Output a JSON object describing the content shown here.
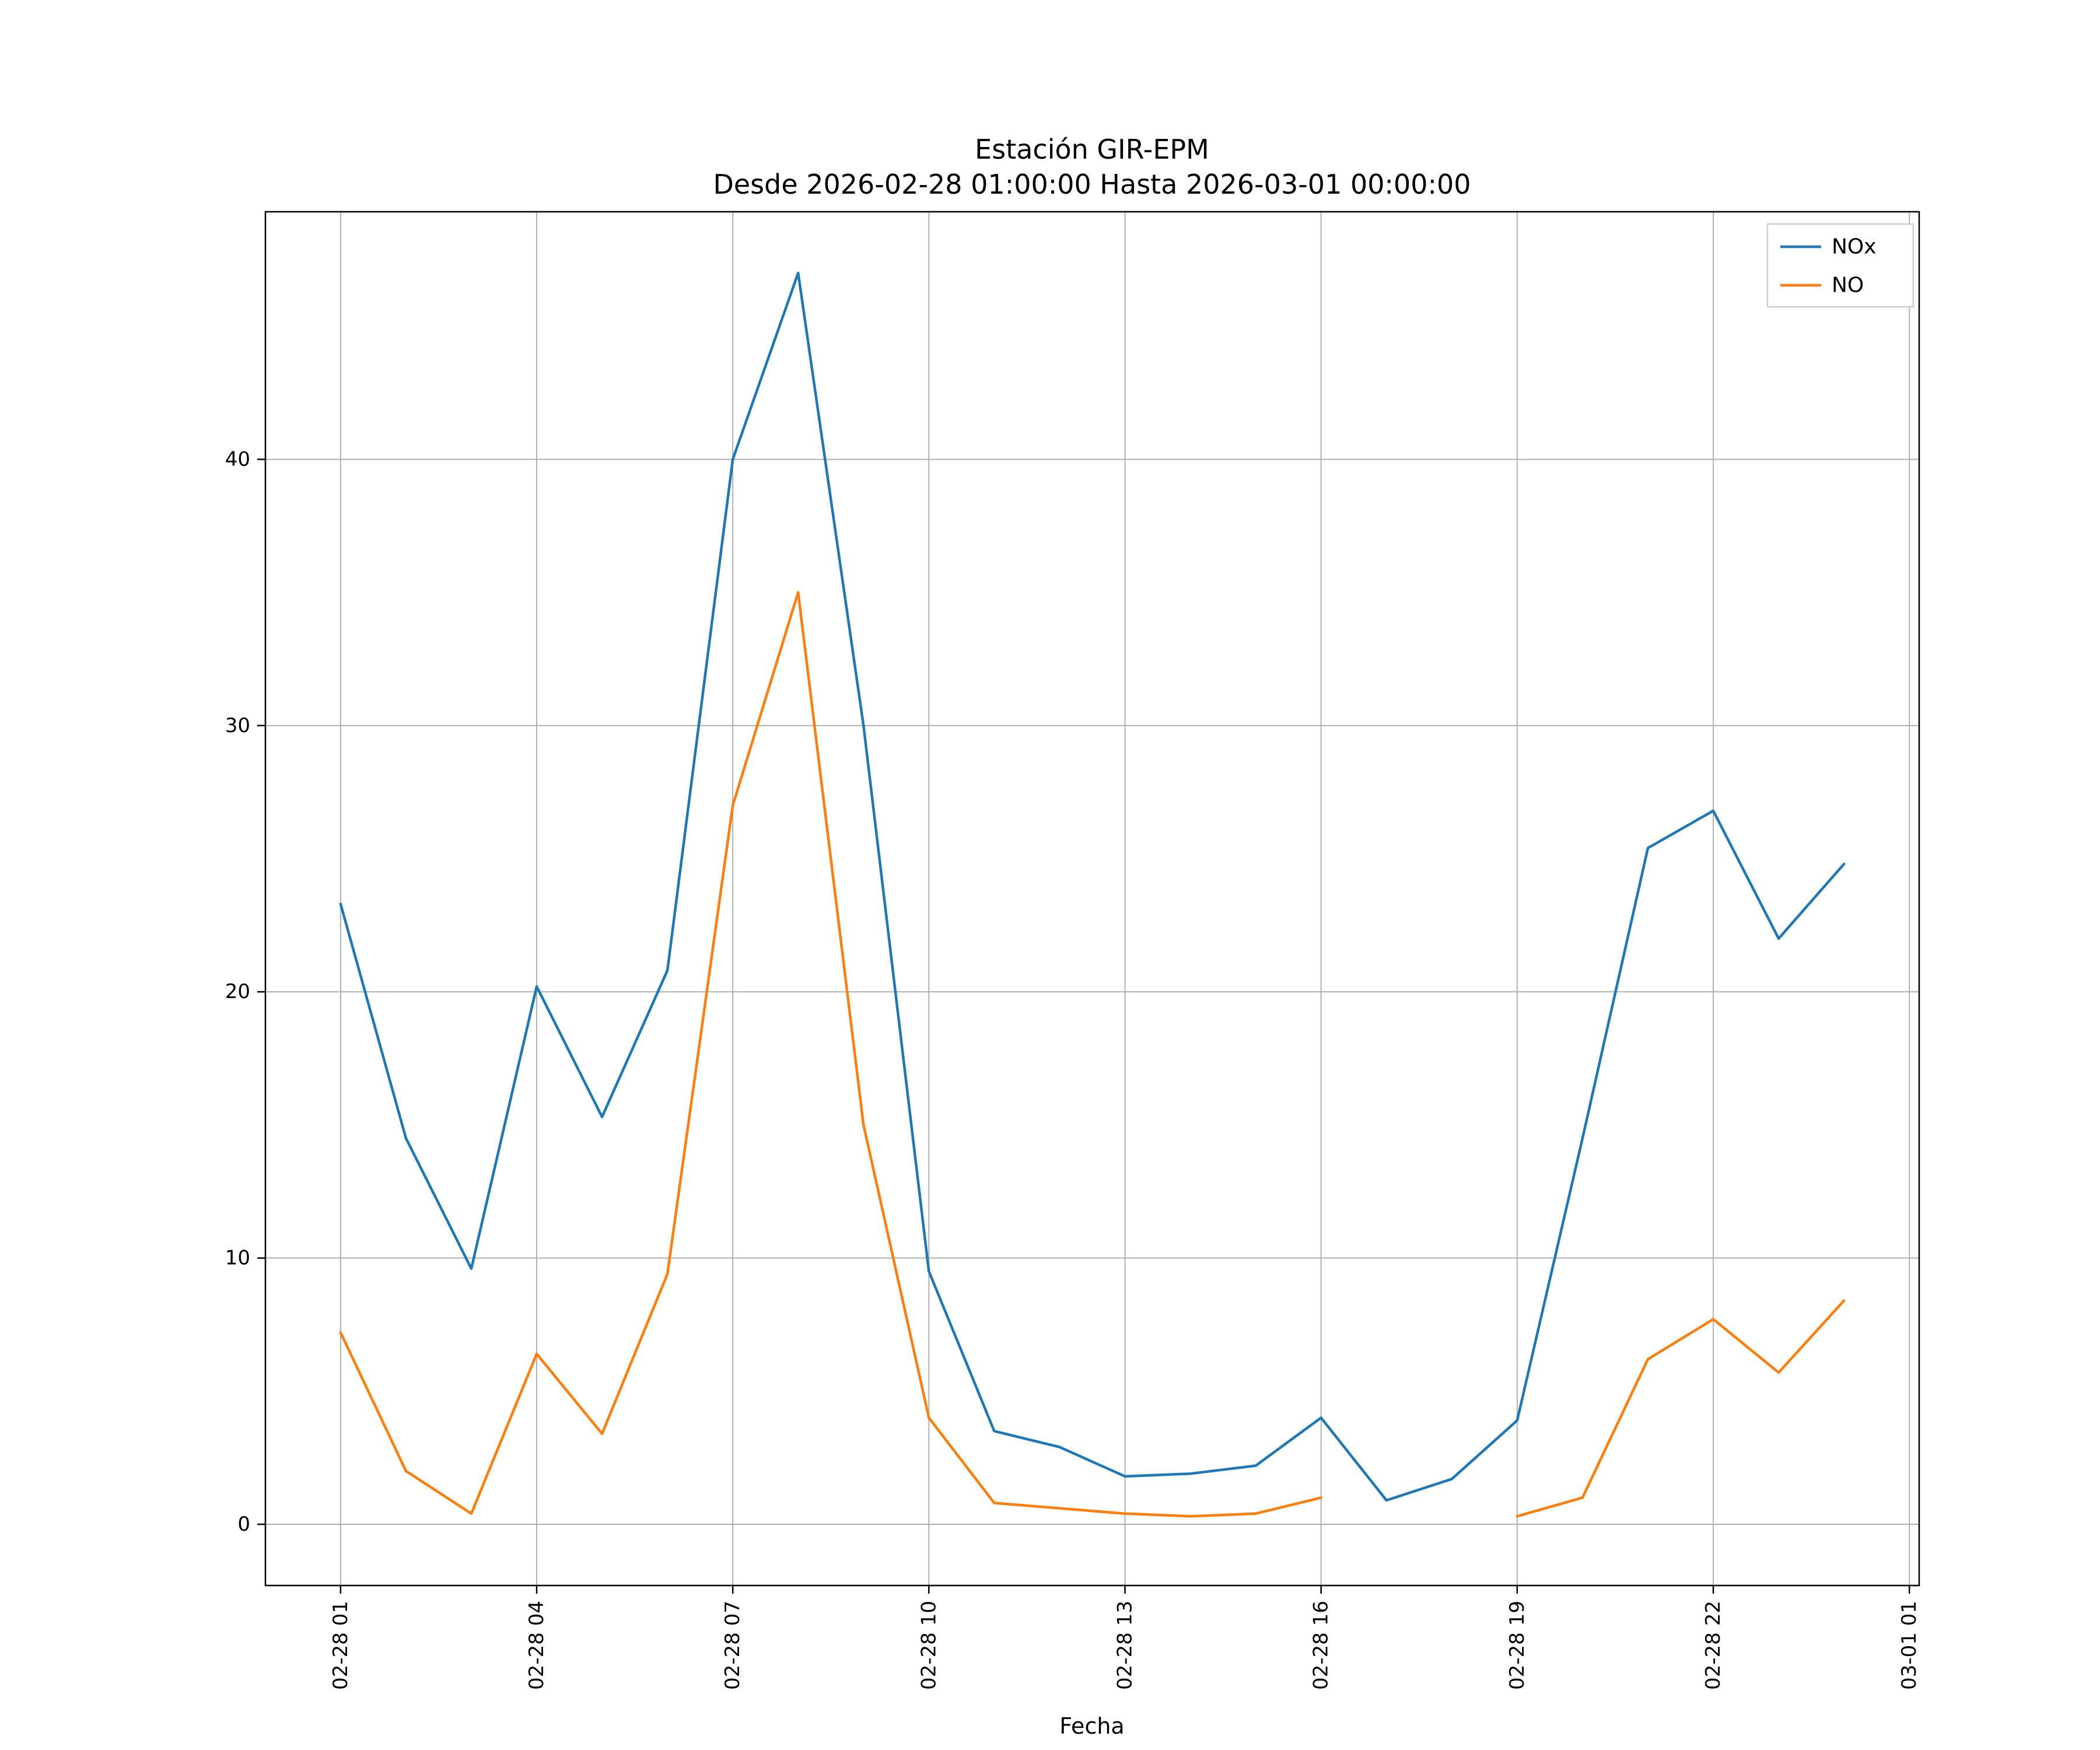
{
  "chart_data": {
    "type": "line",
    "title": "Estación GIR-EPM",
    "subtitle": "Desde 2026-02-28 01:00:00 Hasta 2026-03-01 00:00:00",
    "xlabel": "Fecha",
    "ylabel": "",
    "grid": true,
    "legend_position": "upper right",
    "xlim": [
      -0.15,
      25.15
    ],
    "ylim": [
      -2.3,
      49.3
    ],
    "y_ticks": [
      0,
      10,
      20,
      30,
      40
    ],
    "x_ticks": [
      {
        "v": 1,
        "label": "02-28 01"
      },
      {
        "v": 4,
        "label": "02-28 04"
      },
      {
        "v": 7,
        "label": "02-28 07"
      },
      {
        "v": 10,
        "label": "02-28 10"
      },
      {
        "v": 13,
        "label": "02-28 13"
      },
      {
        "v": 16,
        "label": "02-28 16"
      },
      {
        "v": 19,
        "label": "02-28 19"
      },
      {
        "v": 22,
        "label": "02-28 22"
      },
      {
        "v": 25,
        "label": "03-01 01"
      }
    ],
    "x": [
      1,
      2,
      3,
      4,
      5,
      6,
      7,
      8,
      9,
      10,
      11,
      12,
      13,
      14,
      15,
      16,
      17,
      18,
      19,
      20,
      21,
      22,
      23,
      24
    ],
    "series": [
      {
        "name": "NOx",
        "color": "#1f77b4",
        "values": [
          23.3,
          14.5,
          9.6,
          20.2,
          15.3,
          20.8,
          40.0,
          47.0,
          30.0,
          9.5,
          3.5,
          2.9,
          1.8,
          1.9,
          2.2,
          4.0,
          0.9,
          1.7,
          3.9,
          14.5,
          25.4,
          26.8,
          22.0,
          24.8
        ]
      },
      {
        "name": "NO",
        "color": "#ff7f0e",
        "values": [
          7.2,
          2.0,
          0.4,
          6.4,
          3.4,
          9.4,
          27.0,
          35.0,
          15.0,
          4.0,
          0.8,
          0.6,
          0.4,
          0.3,
          0.4,
          1.0,
          null,
          null,
          0.3,
          1.0,
          6.2,
          7.7,
          5.7,
          8.4
        ]
      }
    ]
  }
}
